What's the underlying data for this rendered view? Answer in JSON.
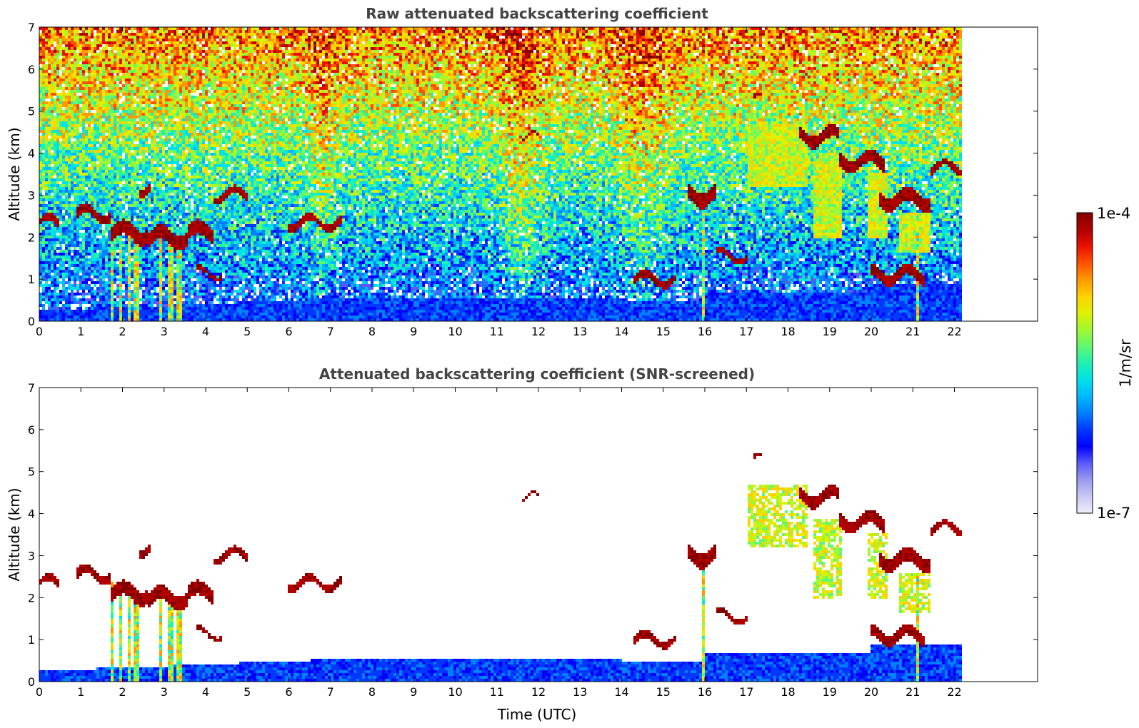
{
  "chart_data": [
    {
      "type": "heatmap",
      "title": "Raw attenuated backscattering coefficient",
      "xlabel": "",
      "ylabel": "Altitude (km)",
      "xlim": [
        0,
        24
      ],
      "ylim": [
        0,
        7
      ],
      "x_ticks": [
        "0",
        "1",
        "2",
        "3",
        "4",
        "5",
        "6",
        "7",
        "8",
        "9",
        "10",
        "11",
        "12",
        "13",
        "14",
        "15",
        "16",
        "17",
        "18",
        "19",
        "20",
        "21",
        "22"
      ],
      "y_ticks": [
        "0",
        "1",
        "2",
        "3",
        "4",
        "5",
        "6",
        "7"
      ],
      "data_end_time": 22.15,
      "screened": false
    },
    {
      "type": "heatmap",
      "title": "Attenuated backscattering coefficient (SNR-screened)",
      "xlabel": "Time (UTC)",
      "ylabel": "Altitude (km)",
      "xlim": [
        0,
        24
      ],
      "ylim": [
        0,
        7
      ],
      "x_ticks": [
        "0",
        "1",
        "2",
        "3",
        "4",
        "5",
        "6",
        "7",
        "8",
        "9",
        "10",
        "11",
        "12",
        "13",
        "14",
        "15",
        "16",
        "17",
        "18",
        "19",
        "20",
        "21",
        "22"
      ],
      "y_ticks": [
        "0",
        "1",
        "2",
        "3",
        "4",
        "5",
        "6",
        "7"
      ],
      "data_end_time": 22.15,
      "screened": true
    }
  ],
  "colorbar": {
    "label": "1/m/sr",
    "max_label": "1e-4",
    "min_label": "1e-7",
    "scale": "log",
    "colors": [
      "#eeeefb",
      "#c8c8f3",
      "#9a9af0",
      "#5a5af8",
      "#0000ff",
      "#0038ff",
      "#0080ff",
      "#00b8ff",
      "#00e0e8",
      "#20f0b0",
      "#60f870",
      "#a0f830",
      "#e0f000",
      "#ffd000",
      "#ff9800",
      "#ff5000",
      "#e81000",
      "#b00000",
      "#800000"
    ]
  }
}
